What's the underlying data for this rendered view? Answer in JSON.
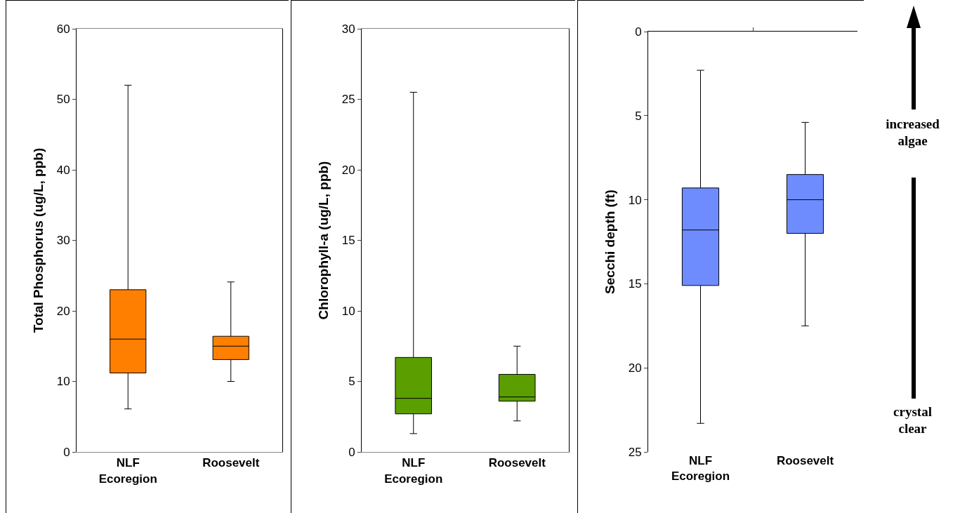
{
  "chart_data": [
    {
      "type": "box",
      "ylabel": "Total Phosphorus (ug/L, ppb)",
      "categories": [
        "NLF Ecoregion",
        "Roosevelt"
      ],
      "ylim": [
        0,
        60
      ],
      "yticks": [
        0,
        10,
        20,
        30,
        40,
        50,
        60
      ],
      "grid": false,
      "color": "#ff8000",
      "boxes": [
        {
          "low": 6.1,
          "q1": 11.2,
          "median": 16,
          "q3": 23,
          "high": 52
        },
        {
          "low": 10,
          "q1": 13.1,
          "median": 15,
          "q3": 16.4,
          "high": 24.1
        }
      ]
    },
    {
      "type": "box",
      "ylabel": "Chlorophyll-a (ug/L, ppb)",
      "categories": [
        "NLF Ecoregion",
        "Roosevelt"
      ],
      "ylim": [
        0,
        30
      ],
      "yticks": [
        0,
        5,
        10,
        15,
        20,
        25,
        30
      ],
      "grid": false,
      "color": "#5a9e00",
      "boxes": [
        {
          "low": 1.3,
          "q1": 2.7,
          "median": 3.8,
          "q3": 6.7,
          "high": 25.5
        },
        {
          "low": 2.2,
          "q1": 3.6,
          "median": 3.9,
          "q3": 5.5,
          "high": 7.5
        }
      ]
    },
    {
      "type": "box",
      "ylabel": "Secchi depth (ft)",
      "categories": [
        "NLF Ecoregion",
        "Roosevelt"
      ],
      "ylim": [
        25,
        0
      ],
      "yticks": [
        0,
        5,
        10,
        15,
        20,
        25
      ],
      "grid": false,
      "color": "#6f8cff",
      "boxes": [
        {
          "low": 2.3,
          "q1": 9.3,
          "median": 11.8,
          "q3": 15.1,
          "high": 23.3
        },
        {
          "low": 5.4,
          "q1": 8.5,
          "median": 10,
          "q3": 12,
          "high": 17.5
        }
      ],
      "annotations": [
        "increased algae",
        "crystal clear"
      ]
    }
  ]
}
